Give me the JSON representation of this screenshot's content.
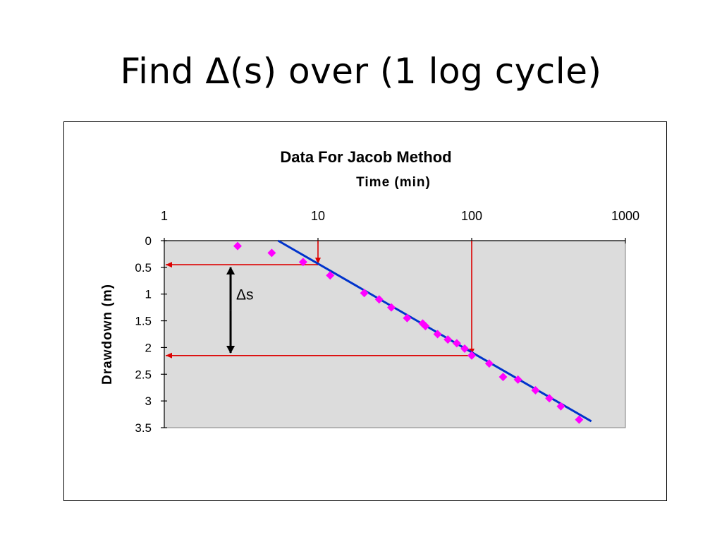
{
  "slide": {
    "title": "Find Δ(s) over (1 log cycle)"
  },
  "chart_data": {
    "type": "scatter",
    "title": "Data For Jacob Method",
    "xlabel": "Time (min)",
    "ylabel": "Drawdown (m)",
    "x_scale": "log",
    "x_axis_position": "top",
    "y_reversed": true,
    "xlim": [
      1,
      1000
    ],
    "ylim": [
      0,
      3.5
    ],
    "x_ticks": [
      1,
      10,
      100,
      1000
    ],
    "x_tick_labels": [
      "1",
      "10",
      "100",
      "1000"
    ],
    "y_ticks": [
      0,
      0.5,
      1,
      1.5,
      2,
      2.5,
      3,
      3.5
    ],
    "y_tick_labels": [
      "0",
      "0.5",
      "1",
      "1.5",
      "2",
      "2.5",
      "3",
      "3.5"
    ],
    "grid": false,
    "legend": "none",
    "plot_background": "#dcdcdc",
    "series": [
      {
        "x": [
          3,
          5,
          8,
          12,
          20,
          25,
          30,
          38,
          48,
          50,
          60,
          70,
          80,
          90,
          100,
          130,
          160,
          200,
          260,
          320,
          380,
          500
        ],
        "y": [
          0.1,
          0.23,
          0.4,
          0.65,
          0.98,
          1.1,
          1.25,
          1.45,
          1.55,
          1.6,
          1.75,
          1.85,
          1.92,
          2.02,
          2.15,
          2.3,
          2.55,
          2.6,
          2.8,
          2.95,
          3.1,
          3.35
        ],
        "color": "#ff00ff",
        "marker": "diamond"
      }
    ],
    "fit_line": {
      "x": [
        5.5,
        600
      ],
      "y": [
        0.0,
        3.38
      ],
      "color": "#0033cc"
    },
    "annotations": {
      "arrow_color": "#dd0000",
      "points": [
        {
          "x": 10,
          "y": 0.45
        },
        {
          "x": 100,
          "y": 2.15
        }
      ],
      "delta_label": "Δs",
      "delta_arrow": {
        "x": 2.7,
        "y_from": 0.5,
        "y_to": 2.1
      }
    }
  }
}
